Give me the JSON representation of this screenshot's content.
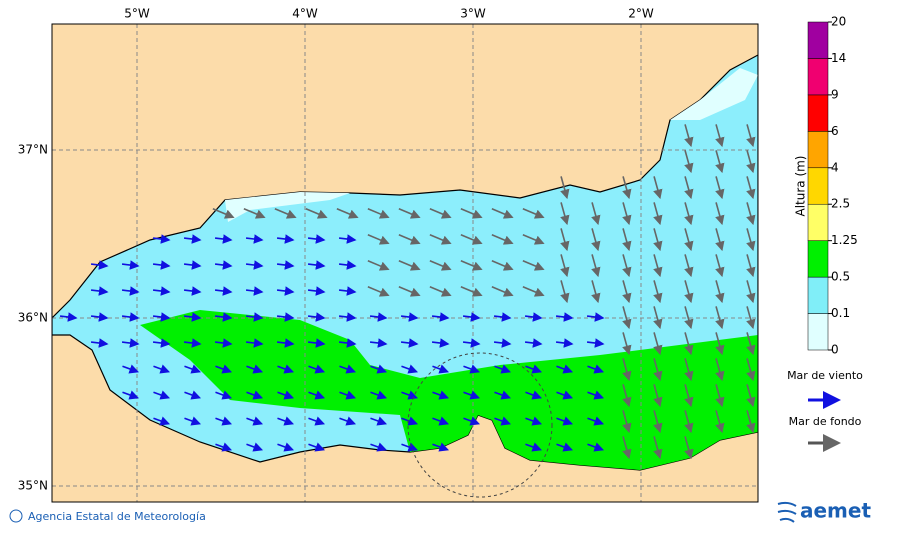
{
  "map": {
    "lon_labels": [
      "5°W",
      "4°W",
      "3°W",
      "2°W"
    ],
    "lat_labels": [
      "37°N",
      "36°N",
      "35°N"
    ]
  },
  "colorbar": {
    "title": "Altura (m)",
    "ticks": [
      0,
      0.1,
      0.5,
      1.25,
      2.5,
      4,
      6,
      9,
      14,
      20
    ],
    "colors": [
      "#e0ffff",
      "#80eef8",
      "#00f000",
      "#ffff66",
      "#ffd700",
      "#ffa500",
      "#ff0000",
      "#f00070",
      "#a000a0"
    ]
  },
  "legend": {
    "wind_sea": "Mar de viento",
    "swell": "Mar de fondo"
  },
  "footer": {
    "copyright": "Agencia Estatal de Meteorología",
    "logo": "aemet"
  }
}
